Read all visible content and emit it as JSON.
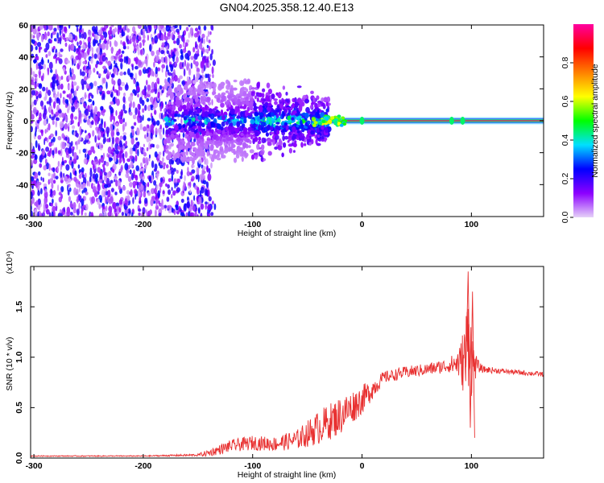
{
  "title": "GN04.2025.358.12.40.E13",
  "chart_data": [
    {
      "type": "heatmap",
      "xlabel": "Height of straight line (km)",
      "ylabel": "Frequency (Hz)",
      "xlim": [
        -303,
        166
      ],
      "ylim": [
        -60,
        60
      ],
      "xticks": [
        -300,
        -200,
        -100,
        0,
        100
      ],
      "yticks": [
        60,
        40,
        20,
        0,
        -20,
        -40,
        -60
      ],
      "colorbar": {
        "label": "Normalized spectral amplitude",
        "range": [
          0,
          1
        ],
        "ticks": [
          "0.0",
          "0.2",
          "0.4",
          "0.6",
          "0.8"
        ],
        "colors": [
          "#e6d2f8",
          "#8c00ff",
          "#0000ff",
          "#00e0ff",
          "#00ff00",
          "#ffff00",
          "#ff8000",
          "#ff0000",
          "#ff00a0"
        ]
      },
      "regions": [
        {
          "x_range": [
            -303,
            -140
          ],
          "description_level": 0.25,
          "coverage": "full frequency band"
        },
        {
          "x_range": [
            -180,
            -30
          ],
          "freq_range": [
            -20,
            15
          ],
          "level": 0.3
        },
        {
          "x_range": [
            -30,
            166
          ],
          "freq_center": 0,
          "level": 1.0
        }
      ]
    },
    {
      "type": "line",
      "xlabel": "Height of straight line (km)",
      "ylabel": "SNR (10 * v/v)",
      "y_multiplier": "(x10⁴)",
      "xlim": [
        -303,
        166
      ],
      "ylim": [
        0,
        1.9
      ],
      "xticks": [
        -300,
        -200,
        -100,
        0,
        100
      ],
      "yticks": [
        "0.0",
        "0.5",
        "1.0",
        "1.5"
      ],
      "color": "#e83030",
      "x": [
        -303,
        -250,
        -200,
        -150,
        -140,
        -120,
        -100,
        -80,
        -60,
        -40,
        -20,
        0,
        20,
        40,
        60,
        80,
        90,
        95,
        98,
        100,
        105,
        110,
        130,
        166
      ],
      "values": [
        0.02,
        0.02,
        0.02,
        0.03,
        0.05,
        0.12,
        0.15,
        0.14,
        0.18,
        0.3,
        0.42,
        0.58,
        0.8,
        0.85,
        0.88,
        0.92,
        0.95,
        1.0,
        1.35,
        0.95,
        0.92,
        0.88,
        0.86,
        0.83
      ],
      "noise_amplitude": [
        0.004,
        0.004,
        0.004,
        0.01,
        0.03,
        0.05,
        0.06,
        0.06,
        0.08,
        0.14,
        0.16,
        0.12,
        0.05,
        0.05,
        0.05,
        0.06,
        0.15,
        0.4,
        0.5,
        0.3,
        0.06,
        0.03,
        0.02,
        0.02
      ]
    }
  ]
}
